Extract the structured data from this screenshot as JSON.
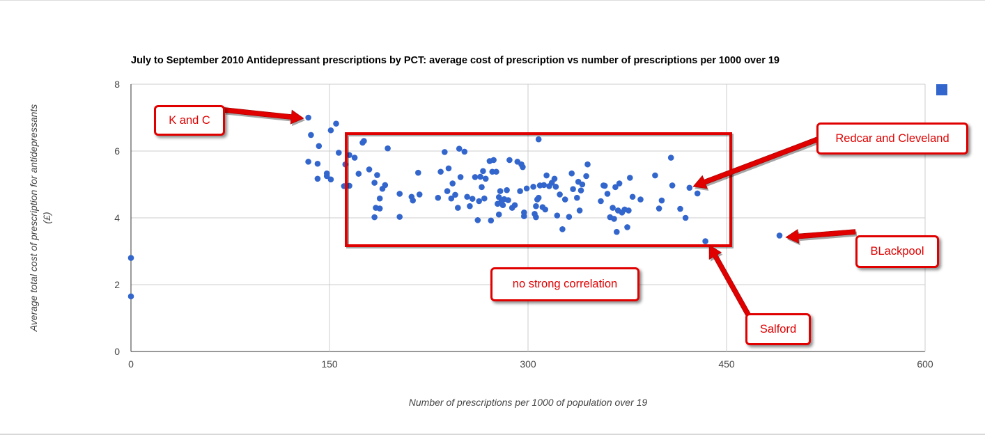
{
  "chart_data": {
    "type": "scatter",
    "title": "July to September 2010 Antidepressant prescriptions by PCT: average cost of prescription vs number of prescriptions per 1000 over 19",
    "xlabel": "Number of prescriptions per 1000 of population over 19",
    "ylabel_line1": "Average total cost of prescription for antidepressants",
    "ylabel_line2": "(£)",
    "xlim": [
      0,
      600
    ],
    "ylim": [
      0,
      8
    ],
    "xticks": [
      "0",
      "150",
      "300",
      "450",
      "600"
    ],
    "yticks": [
      "0",
      "2",
      "4",
      "6",
      "8"
    ],
    "grid": true,
    "legend": "top-right (swatch only)",
    "marker_color": "#3366cc",
    "points": [
      [
        0,
        2.8
      ],
      [
        0,
        1.65
      ],
      [
        134,
        7.0
      ],
      [
        136,
        6.48
      ],
      [
        142,
        6.15
      ],
      [
        151,
        6.62
      ],
      [
        155,
        6.82
      ],
      [
        157,
        5.95
      ],
      [
        134,
        5.68
      ],
      [
        141,
        5.62
      ],
      [
        148,
        5.33
      ],
      [
        148,
        5.25
      ],
      [
        151,
        5.15
      ],
      [
        141,
        5.17
      ],
      [
        162,
        5.6
      ],
      [
        165,
        5.88
      ],
      [
        169,
        5.8
      ],
      [
        172,
        5.32
      ],
      [
        175,
        6.25
      ],
      [
        176,
        6.3
      ],
      [
        161,
        4.95
      ],
      [
        165,
        4.96
      ],
      [
        180,
        5.45
      ],
      [
        184,
        5.05
      ],
      [
        186,
        5.28
      ],
      [
        188,
        4.58
      ],
      [
        190,
        4.87
      ],
      [
        192,
        4.98
      ],
      [
        185,
        4.3
      ],
      [
        188,
        4.28
      ],
      [
        184,
        4.02
      ],
      [
        194,
        6.08
      ],
      [
        203,
        4.72
      ],
      [
        203,
        4.03
      ],
      [
        212,
        4.63
      ],
      [
        213,
        4.52
      ],
      [
        217,
        5.35
      ],
      [
        218,
        4.7
      ],
      [
        232,
        4.6
      ],
      [
        234,
        5.38
      ],
      [
        237,
        5.97
      ],
      [
        239,
        4.8
      ],
      [
        240,
        5.48
      ],
      [
        242,
        4.58
      ],
      [
        243,
        5.03
      ],
      [
        245,
        4.69
      ],
      [
        247,
        4.3
      ],
      [
        248,
        6.07
      ],
      [
        249,
        5.22
      ],
      [
        252,
        5.98
      ],
      [
        254,
        4.63
      ],
      [
        256,
        4.35
      ],
      [
        258,
        4.57
      ],
      [
        260,
        5.22
      ],
      [
        262,
        3.93
      ],
      [
        263,
        4.5
      ],
      [
        264,
        5.23
      ],
      [
        265,
        4.92
      ],
      [
        266,
        5.4
      ],
      [
        267,
        4.58
      ],
      [
        268,
        5.17
      ],
      [
        271,
        5.7
      ],
      [
        272,
        3.92
      ],
      [
        273,
        5.38
      ],
      [
        274,
        5.73
      ],
      [
        276,
        5.38
      ],
      [
        277,
        4.42
      ],
      [
        278,
        4.62
      ],
      [
        278,
        4.1
      ],
      [
        279,
        4.8
      ],
      [
        280,
        4.5
      ],
      [
        281,
        4.38
      ],
      [
        282,
        4.56
      ],
      [
        284,
        4.83
      ],
      [
        285,
        4.53
      ],
      [
        286,
        5.73
      ],
      [
        288,
        4.3
      ],
      [
        290,
        4.38
      ],
      [
        292,
        5.68
      ],
      [
        294,
        4.8
      ],
      [
        295,
        5.6
      ],
      [
        296,
        5.52
      ],
      [
        297,
        4.05
      ],
      [
        297,
        4.16
      ],
      [
        299,
        4.88
      ],
      [
        304,
        4.93
      ],
      [
        305,
        4.12
      ],
      [
        306,
        4.35
      ],
      [
        306,
        4.02
      ],
      [
        307,
        4.55
      ],
      [
        308,
        4.6
      ],
      [
        308,
        6.35
      ],
      [
        309,
        4.97
      ],
      [
        311,
        4.32
      ],
      [
        312,
        4.98
      ],
      [
        313,
        4.25
      ],
      [
        314,
        5.27
      ],
      [
        316,
        4.95
      ],
      [
        318,
        5.05
      ],
      [
        320,
        5.17
      ],
      [
        321,
        4.93
      ],
      [
        322,
        4.07
      ],
      [
        324,
        4.7
      ],
      [
        326,
        3.66
      ],
      [
        328,
        4.55
      ],
      [
        331,
        4.03
      ],
      [
        333,
        5.33
      ],
      [
        334,
        4.86
      ],
      [
        337,
        4.6
      ],
      [
        338,
        5.08
      ],
      [
        339,
        4.22
      ],
      [
        340,
        4.82
      ],
      [
        341,
        5.0
      ],
      [
        344,
        5.25
      ],
      [
        345,
        5.6
      ],
      [
        355,
        4.5
      ],
      [
        357,
        4.97
      ],
      [
        358,
        4.96
      ],
      [
        360,
        4.72
      ],
      [
        362,
        4.02
      ],
      [
        364,
        4.3
      ],
      [
        365,
        3.97
      ],
      [
        366,
        4.92
      ],
      [
        367,
        3.58
      ],
      [
        368,
        4.22
      ],
      [
        369,
        5.03
      ],
      [
        371,
        4.16
      ],
      [
        373,
        4.25
      ],
      [
        375,
        3.72
      ],
      [
        376,
        4.22
      ],
      [
        377,
        5.2
      ],
      [
        379,
        4.63
      ],
      [
        385,
        4.55
      ],
      [
        396,
        5.27
      ],
      [
        399,
        4.28
      ],
      [
        401,
        4.52
      ],
      [
        408,
        5.8
      ],
      [
        409,
        4.97
      ],
      [
        415,
        4.27
      ],
      [
        419,
        4.0
      ],
      [
        422,
        4.9
      ],
      [
        428,
        4.73
      ],
      [
        434,
        3.3
      ],
      [
        490,
        3.47
      ]
    ]
  },
  "annotations": [
    {
      "id": "k-and-c",
      "text": "K and C"
    },
    {
      "id": "redcar",
      "text": "Redcar and Cleveland"
    },
    {
      "id": "blackpool",
      "text": "BLackpool"
    },
    {
      "id": "correlation",
      "text": "no strong correlation"
    },
    {
      "id": "salford",
      "text": "Salford"
    }
  ],
  "annotation_color": "#e00000"
}
